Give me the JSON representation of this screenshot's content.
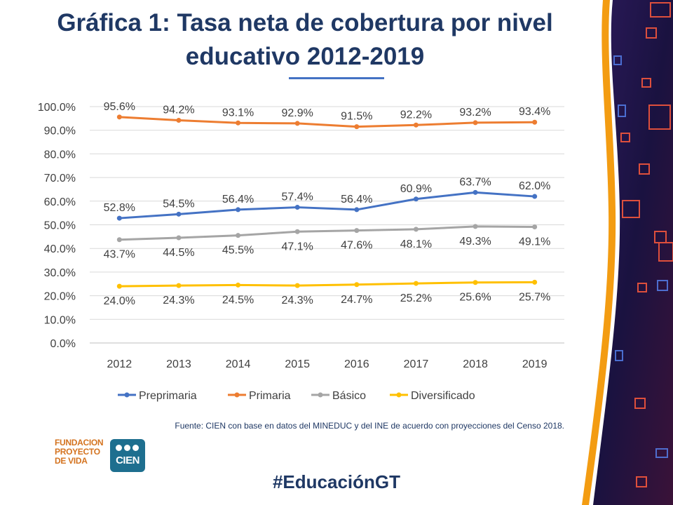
{
  "title": {
    "line1": "Gráfica 1: Tasa neta de cobertura por nivel",
    "line2": "educativo 2012-2019"
  },
  "chart_data": {
    "type": "line",
    "categories": [
      "2012",
      "2013",
      "2014",
      "2015",
      "2016",
      "2017",
      "2018",
      "2019"
    ],
    "ylim": [
      0,
      100
    ],
    "yticks": [
      "0.0%",
      "10.0%",
      "20.0%",
      "30.0%",
      "40.0%",
      "50.0%",
      "60.0%",
      "70.0%",
      "80.0%",
      "90.0%",
      "100.0%"
    ],
    "grid": true,
    "legend_position": "bottom",
    "series": [
      {
        "name": "Preprimaria",
        "color": "#4472c4",
        "label_side": "above",
        "values": [
          52.8,
          54.5,
          56.4,
          57.4,
          56.4,
          60.9,
          63.7,
          62.0
        ],
        "labels": [
          "52.8%",
          "54.5%",
          "56.4%",
          "57.4%",
          "56.4%",
          "60.9%",
          "63.7%",
          "62.0%"
        ]
      },
      {
        "name": "Primaria",
        "color": "#ed7d31",
        "label_side": "above",
        "values": [
          95.6,
          94.2,
          93.1,
          92.9,
          91.5,
          92.2,
          93.2,
          93.4
        ],
        "labels": [
          "95.6%",
          "94.2%",
          "93.1%",
          "92.9%",
          "91.5%",
          "92.2%",
          "93.2%",
          "93.4%"
        ]
      },
      {
        "name": "Básico",
        "color": "#a5a5a5",
        "label_side": "below",
        "values": [
          43.7,
          44.5,
          45.5,
          47.1,
          47.6,
          48.1,
          49.3,
          49.1
        ],
        "labels": [
          "43.7%",
          "44.5%",
          "45.5%",
          "47.1%",
          "47.6%",
          "48.1%",
          "49.3%",
          "49.1%"
        ]
      },
      {
        "name": "Diversificado",
        "color": "#ffc000",
        "label_side": "below",
        "values": [
          24.0,
          24.3,
          24.5,
          24.3,
          24.7,
          25.2,
          25.6,
          25.7
        ],
        "labels": [
          "24.0%",
          "24.3%",
          "24.5%",
          "24.3%",
          "24.7%",
          "25.2%",
          "25.6%",
          "25.7%"
        ]
      }
    ]
  },
  "source": "Fuente: CIEN con base en datos del MINEDUC y del INE de acuerdo con proyecciones del Censo 2018.",
  "hashtag": "#EducaciónGT",
  "logos": {
    "fpv": [
      "FUNDACION",
      "PROYECTO",
      "DE VIDA"
    ],
    "cien": "CIEN"
  },
  "colors": {
    "title": "#1f3864",
    "accent_band": "#f39c12",
    "deco_bg": "#1a1240"
  }
}
